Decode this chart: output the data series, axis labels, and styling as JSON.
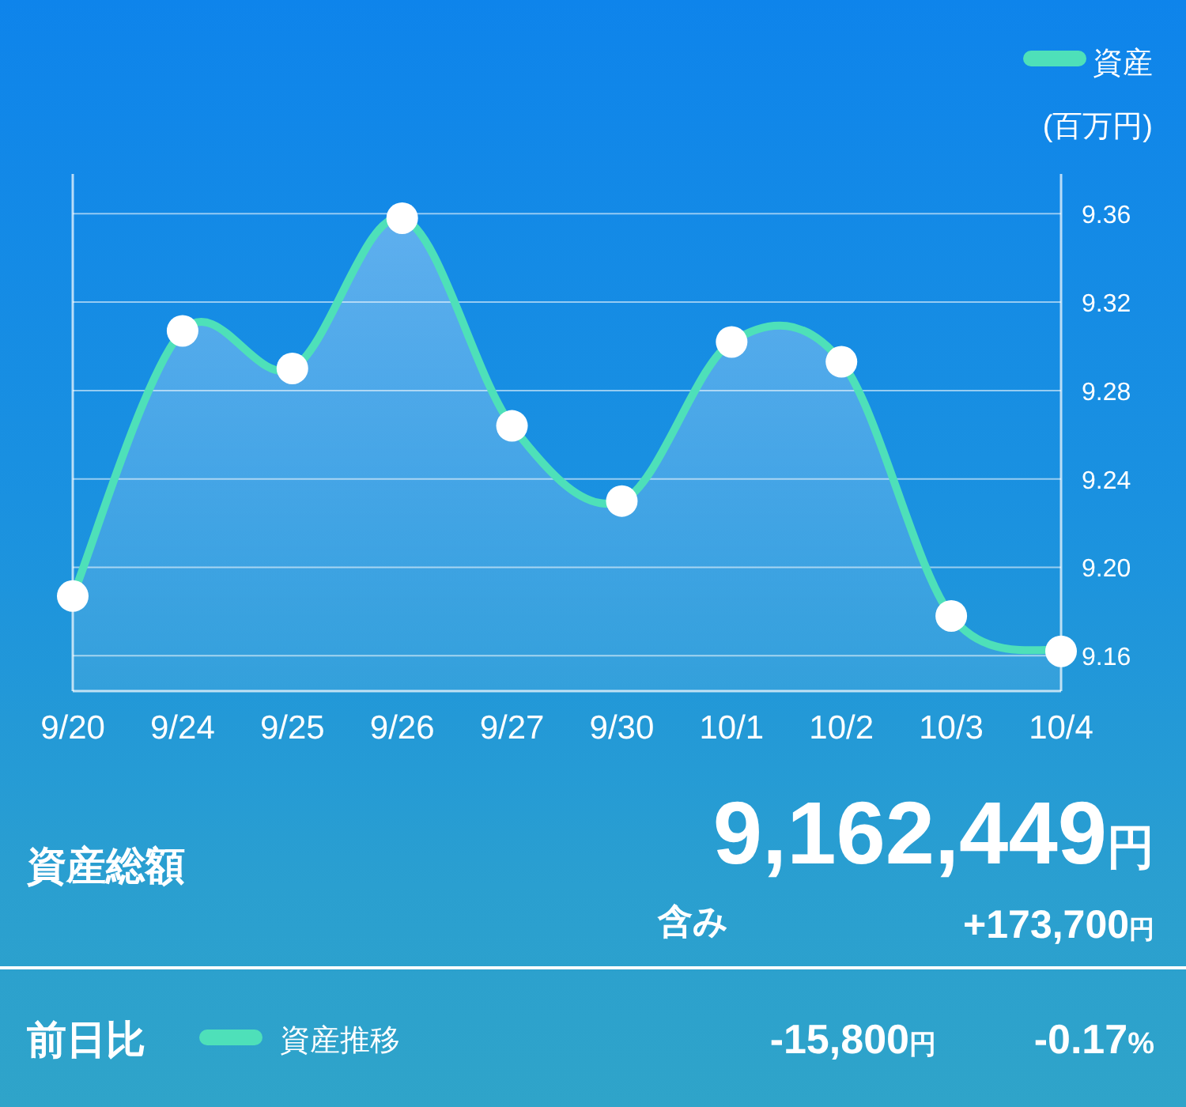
{
  "chart_data": {
    "type": "area",
    "categories": [
      "9/20",
      "9/24",
      "9/25",
      "9/26",
      "9/27",
      "9/30",
      "10/1",
      "10/2",
      "10/3",
      "10/4"
    ],
    "series": [
      {
        "name": "資産",
        "color": "#4ee0b9",
        "values": [
          9.187,
          9.307,
          9.29,
          9.358,
          9.264,
          9.23,
          9.302,
          9.293,
          9.178,
          9.162
        ]
      }
    ],
    "ylabel": "(百万円)",
    "ylim": [
      9.144,
      9.378
    ],
    "yticks": [
      9.16,
      {
        "value": 9.2,
        "label": "9.20"
      },
      9.24,
      9.28,
      9.32,
      9.36
    ],
    "grid": "y",
    "legend": "top right",
    "marker": "circle",
    "annotations": [
      "資産総額",
      "9,162,449円",
      "含み",
      "+173,700円",
      "前日比",
      "資産推移",
      "-15,800円",
      "-0.17%"
    ]
  }
}
